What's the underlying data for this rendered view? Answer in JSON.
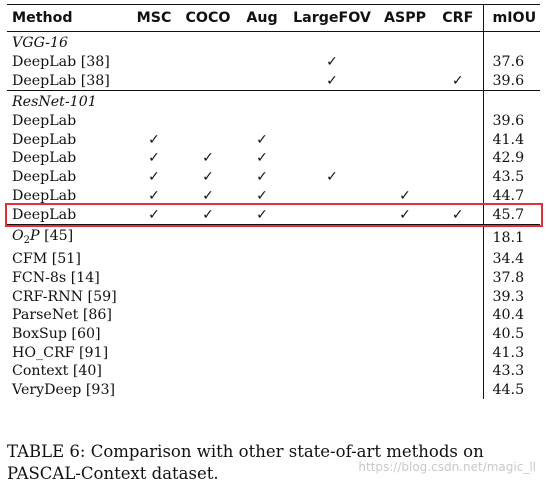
{
  "table": {
    "columns": [
      "Method",
      "MSC",
      "COCO",
      "Aug",
      "LargeFOV",
      "ASPP",
      "CRF",
      "mIOU"
    ],
    "groups": [
      {
        "name": "VGG-16",
        "rows": [
          {
            "method": "DeepLab [38]",
            "msc": "",
            "coco": "",
            "aug": "",
            "largefov": "✓",
            "aspp": "",
            "crf": "",
            "miou": "37.6"
          },
          {
            "method": "DeepLab [38]",
            "msc": "",
            "coco": "",
            "aug": "",
            "largefov": "✓",
            "aspp": "",
            "crf": "✓",
            "miou": "39.6"
          }
        ]
      },
      {
        "name": "ResNet-101",
        "rows": [
          {
            "method": "DeepLab",
            "msc": "",
            "coco": "",
            "aug": "",
            "largefov": "",
            "aspp": "",
            "crf": "",
            "miou": "39.6"
          },
          {
            "method": "DeepLab",
            "msc": "✓",
            "coco": "",
            "aug": "✓",
            "largefov": "",
            "aspp": "",
            "crf": "",
            "miou": "41.4"
          },
          {
            "method": "DeepLab",
            "msc": "✓",
            "coco": "✓",
            "aug": "✓",
            "largefov": "",
            "aspp": "",
            "crf": "",
            "miou": "42.9"
          },
          {
            "method": "DeepLab",
            "msc": "✓",
            "coco": "✓",
            "aug": "✓",
            "largefov": "✓",
            "aspp": "",
            "crf": "",
            "miou": "43.5"
          },
          {
            "method": "DeepLab",
            "msc": "✓",
            "coco": "✓",
            "aug": "✓",
            "largefov": "",
            "aspp": "✓",
            "crf": "",
            "miou": "44.7"
          },
          {
            "method": "DeepLab",
            "msc": "✓",
            "coco": "✓",
            "aug": "✓",
            "largefov": "",
            "aspp": "✓",
            "crf": "✓",
            "miou": "45.7",
            "highlight": true
          }
        ]
      }
    ],
    "others": [
      {
        "method_main": "O",
        "method_sub": "2",
        "method_tail": "P",
        "ref": "[45]",
        "miou": "18.1"
      },
      {
        "method": "CFM [51]",
        "miou": "34.4"
      },
      {
        "method": "FCN-8s [14]",
        "miou": "37.8"
      },
      {
        "method": "CRF-RNN [59]",
        "miou": "39.3"
      },
      {
        "method": "ParseNet [86]",
        "miou": "40.4"
      },
      {
        "method": "BoxSup [60]",
        "miou": "40.5"
      },
      {
        "method": "HO_CRF [91]",
        "miou": "41.3"
      },
      {
        "method": "Context [40]",
        "miou": "43.3"
      },
      {
        "method": "VeryDeep [93]",
        "miou": "44.5"
      }
    ]
  },
  "caption": "TABLE 6: Comparison with other state-of-art methods on PASCAL-Context dataset.",
  "watermark": "https://blog.csdn.net/magic_ll",
  "colors": {
    "highlight_border": "#e0303a"
  }
}
